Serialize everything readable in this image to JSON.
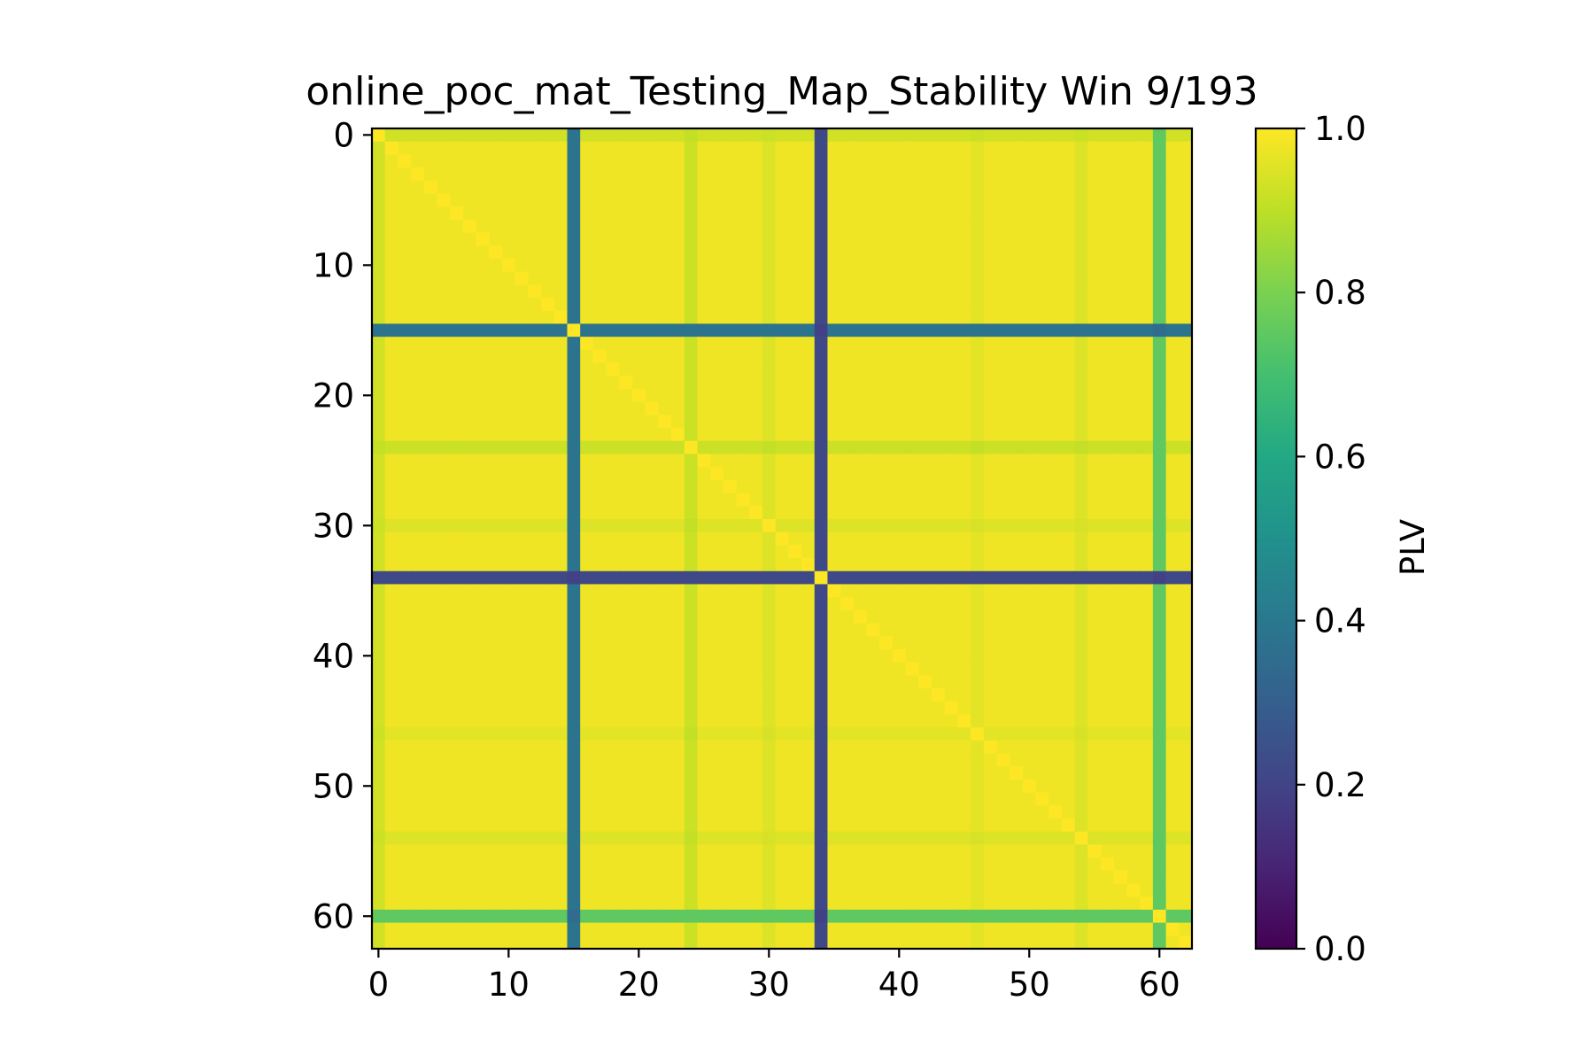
{
  "chart_data": {
    "type": "heatmap",
    "title": "online_poc_mat_Testing_Map_Stability Win 9/193",
    "n": 63,
    "x_ticks": [
      0,
      10,
      20,
      30,
      40,
      50,
      60
    ],
    "y_ticks": [
      0,
      10,
      20,
      30,
      40,
      50,
      60
    ],
    "colorbar": {
      "label": "PLV",
      "range": [
        0.0,
        1.0
      ],
      "ticks": [
        0.0,
        0.2,
        0.4,
        0.6,
        0.8,
        1.0
      ],
      "tick_labels": [
        "0.0",
        "0.2",
        "0.4",
        "0.6",
        "0.8",
        "1.0"
      ],
      "colormap": "viridis"
    },
    "base_value": 0.98,
    "low_channels": [
      {
        "index": 15,
        "value": 0.38
      },
      {
        "index": 34,
        "value": 0.22
      },
      {
        "index": 60,
        "value": 0.75
      }
    ],
    "mild_channels": [
      {
        "index": 24,
        "value": 0.92
      },
      {
        "index": 0,
        "value": 0.93
      },
      {
        "index": 30,
        "value": 0.95
      },
      {
        "index": 54,
        "value": 0.95
      },
      {
        "index": 46,
        "value": 0.96
      }
    ],
    "diagonal_value": 1.0
  }
}
